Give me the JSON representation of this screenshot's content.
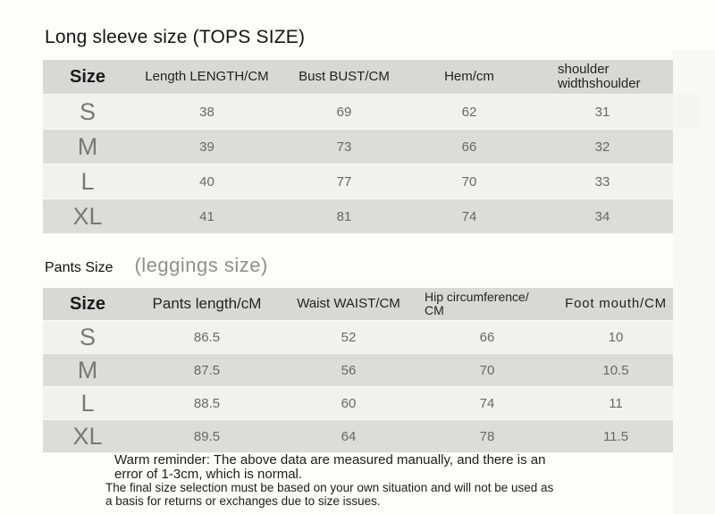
{
  "tables": [
    {
      "title": "Long sleeve size (TOPS SIZE)",
      "columns": [
        "Size",
        "Length LENGTH/CM",
        "Bust BUST/CM",
        "Hem/cm",
        "shoulder widthshoulder"
      ],
      "rows": [
        [
          "S",
          "38",
          "69",
          "62",
          "31"
        ],
        [
          "M",
          "39",
          "73",
          "66",
          "32"
        ],
        [
          "L",
          "40",
          "77",
          "70",
          "33"
        ],
        [
          "XL",
          "41",
          "81",
          "74",
          "34"
        ]
      ]
    },
    {
      "title": "Pants Size",
      "subtitle": "(leggings size)",
      "columns": [
        "Size",
        "Pants length/cM",
        "Waist WAIST/CM",
        "Hip circumference/ CM",
        "Foot mouth/CM"
      ],
      "rows": [
        [
          "S",
          "86.5",
          "52",
          "66",
          "10"
        ],
        [
          "M",
          "87.5",
          "56",
          "70",
          "10.5"
        ],
        [
          "L",
          "88.5",
          "60",
          "74",
          "11"
        ],
        [
          "XL",
          "89.5",
          "64",
          "78",
          "11.5"
        ]
      ]
    }
  ],
  "footer": {
    "reminder_line1": "Warm reminder: The above data are measured manually, and there is an",
    "reminder_line2": "error of 1-3cm, which is normal.",
    "disclaimer_line1": "The final size selection must be based on your own situation and will not be used as",
    "disclaimer_line2": "a basis for returns or exchanges due to size issues."
  },
  "colors": {
    "header_bg": "#d8d8d6",
    "row_light": "#f1f1ef",
    "row_dark": "#dcdcda",
    "text_dark": "#1a1a1a",
    "text_gray": "#686868"
  }
}
